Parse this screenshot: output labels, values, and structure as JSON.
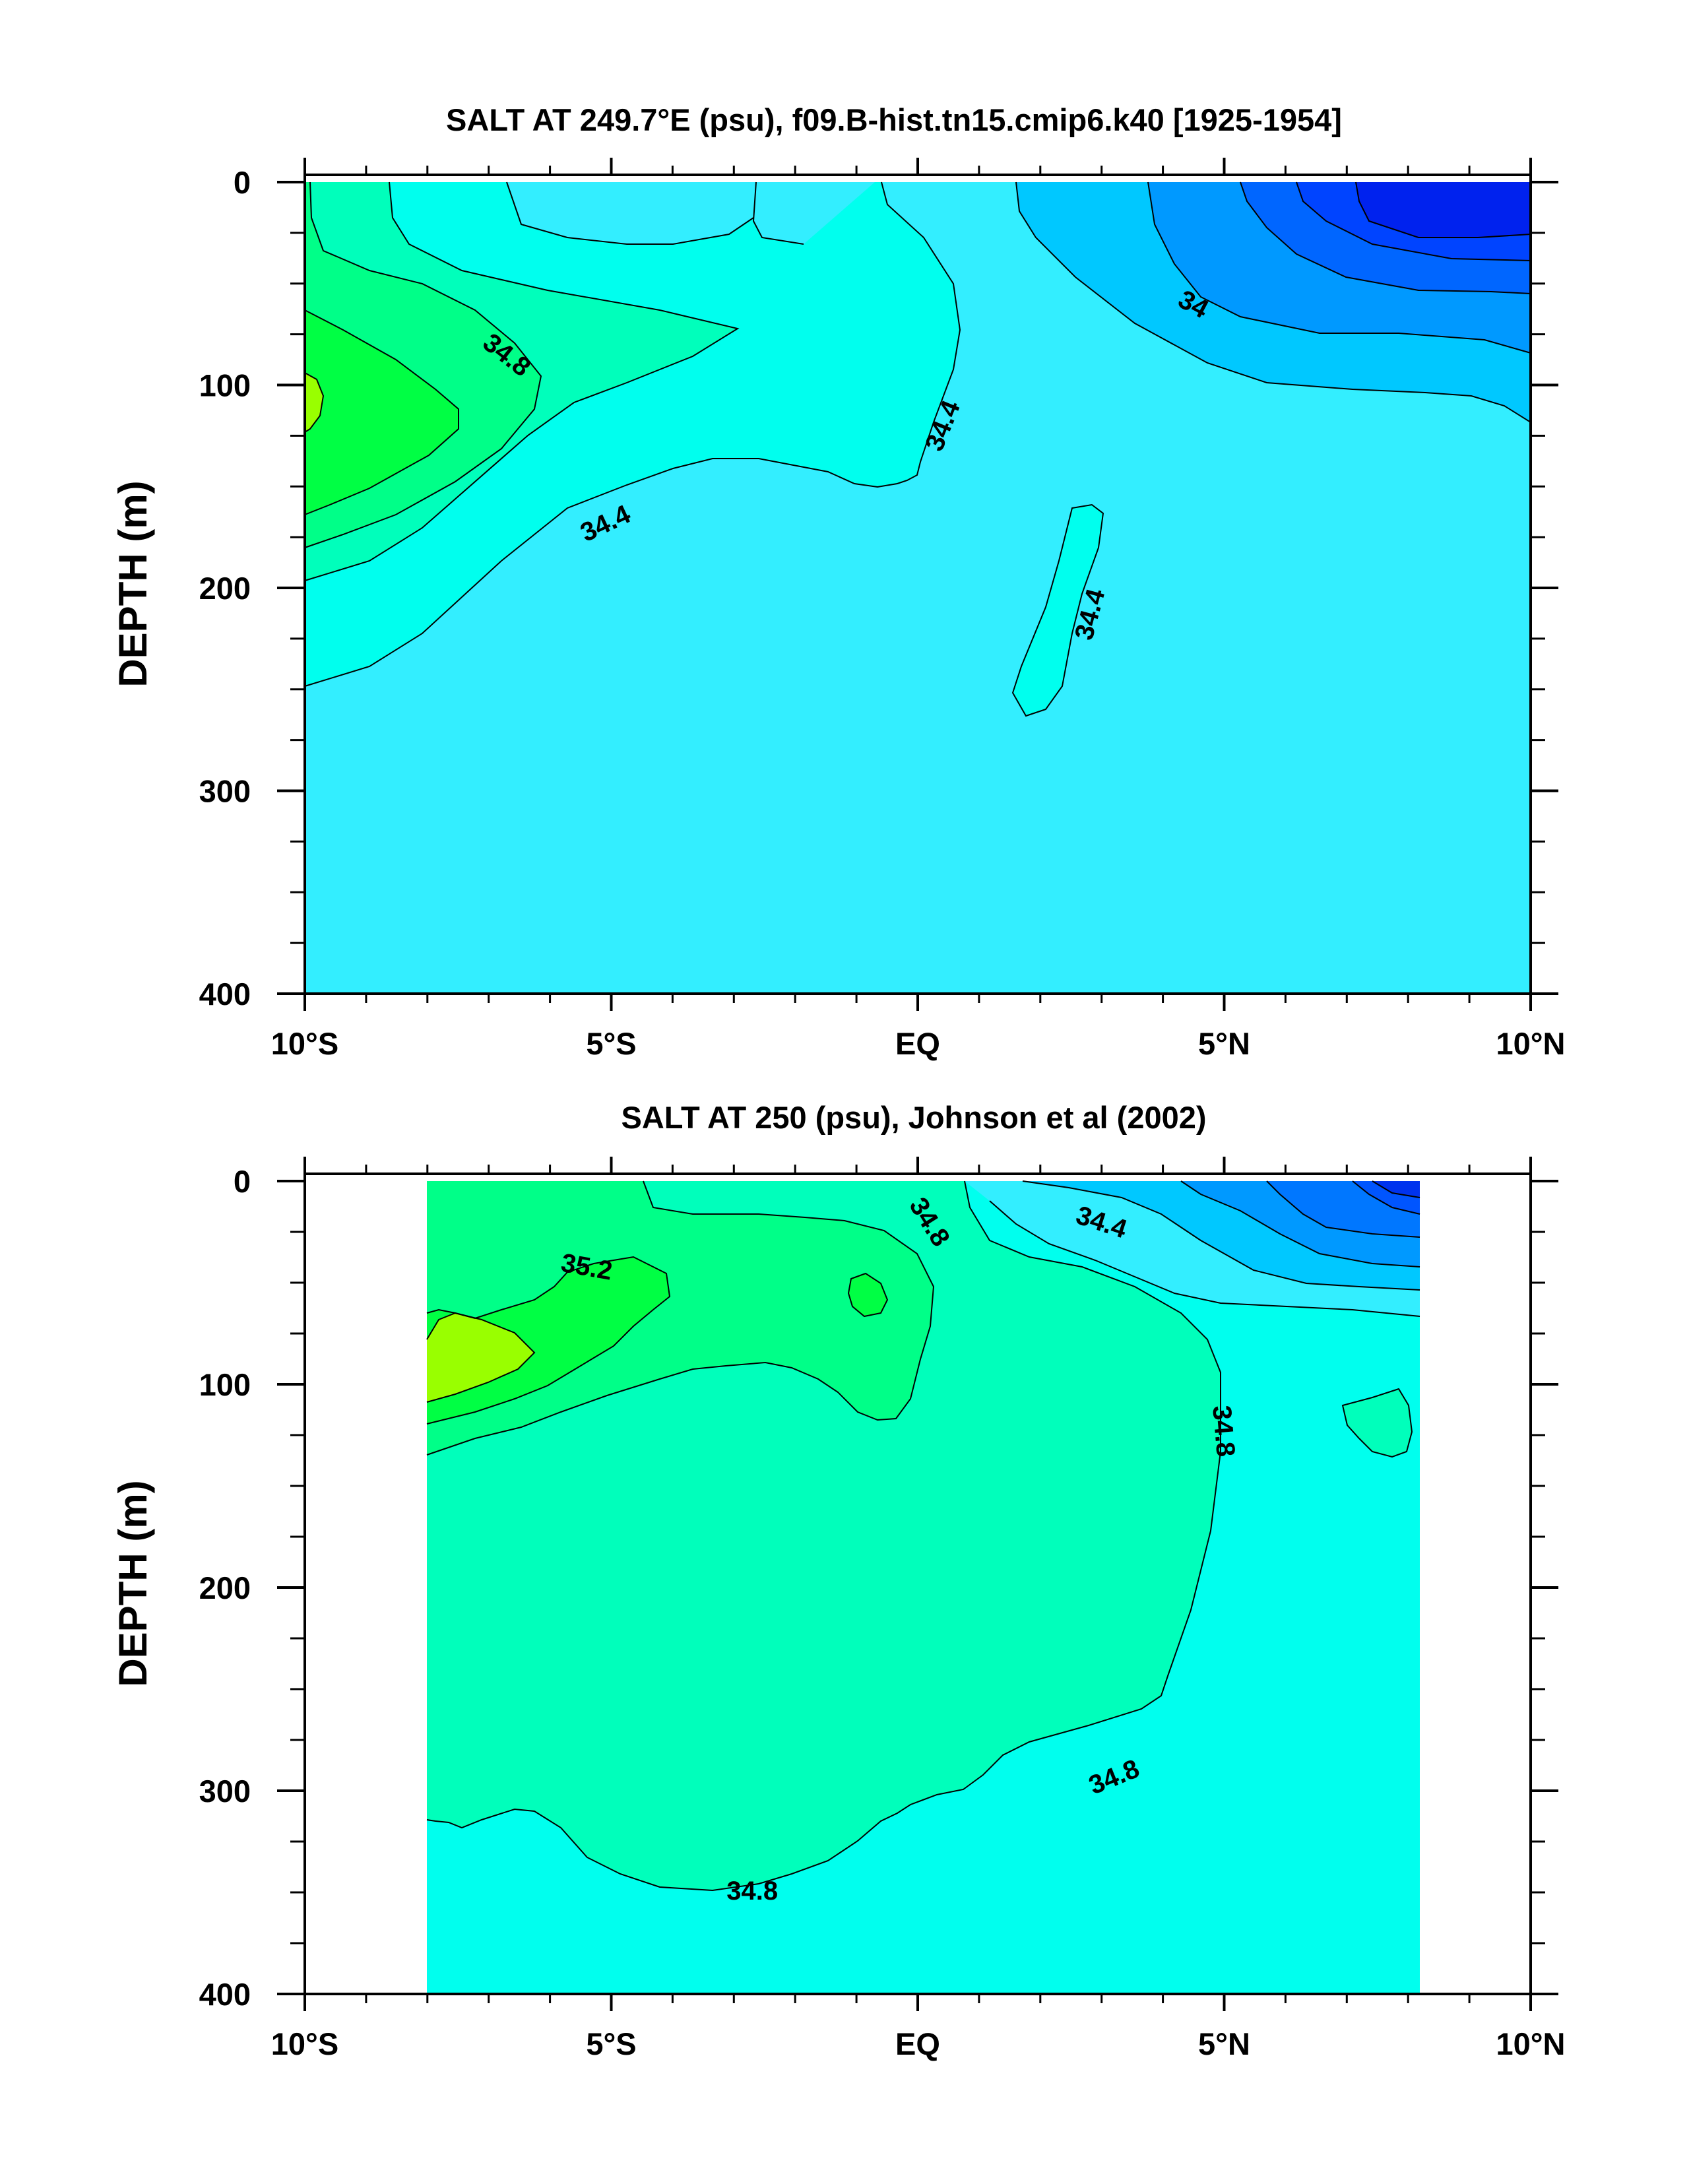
{
  "chart_data": [
    {
      "type": "contour",
      "title": "SALT AT 249.7°E (psu), f09.B-hist.tn15.cmip6.k40 [1925-1954]",
      "xlabel": "",
      "ylabel": "DEPTH (m)",
      "xlim": [
        -10,
        10
      ],
      "ylim": [
        400,
        0
      ],
      "x_ticks": [
        -10,
        -5,
        0,
        5,
        10
      ],
      "x_tick_labels": [
        "10°S",
        "5°S",
        "EQ",
        "5°N",
        "10°N"
      ],
      "y_ticks": [
        0,
        100,
        200,
        300,
        400
      ],
      "y_tick_labels": [
        "0",
        "100",
        "200",
        "300",
        "400"
      ],
      "data_extent": {
        "lat": [
          -10,
          10
        ],
        "depth": [
          5,
          400
        ]
      },
      "contour_labels": [
        {
          "text": "34.8",
          "lat": -6.7,
          "depth": 85,
          "rot": 38
        },
        {
          "text": "34.4",
          "lat": -5.1,
          "depth": 168,
          "rot": -25
        },
        {
          "text": "34.4",
          "lat": 0.4,
          "depth": 120,
          "rot": -68
        },
        {
          "text": "34.4",
          "lat": 2.8,
          "depth": 213,
          "rot": -75
        },
        {
          "text": "34",
          "lat": 4.5,
          "depth": 60,
          "rot": 28
        }
      ]
    },
    {
      "type": "contour",
      "title": "SALT AT 250 (psu), Johnson et al (2002)",
      "xlabel": "",
      "ylabel": "DEPTH (m)",
      "xlim": [
        -10,
        10
      ],
      "ylim": [
        400,
        0
      ],
      "x_ticks": [
        -10,
        -5,
        0,
        5,
        10
      ],
      "x_tick_labels": [
        "10°S",
        "5°S",
        "EQ",
        "5°N",
        "10°N"
      ],
      "y_ticks": [
        0,
        100,
        200,
        300,
        400
      ],
      "y_tick_labels": [
        "0",
        "100",
        "200",
        "300",
        "400"
      ],
      "data_extent": {
        "lat": [
          -8,
          8.2
        ],
        "depth": [
          5,
          400
        ]
      },
      "contour_labels": [
        {
          "text": "35.2",
          "lat": -5.4,
          "depth": 42,
          "rot": 10
        },
        {
          "text": "34.8",
          "lat": 0.2,
          "depth": 20,
          "rot": 58
        },
        {
          "text": "34.4",
          "lat": 3.0,
          "depth": 20,
          "rot": 18
        },
        {
          "text": "34.8",
          "lat": 5.0,
          "depth": 123,
          "rot": 85
        },
        {
          "text": "34.8",
          "lat": 3.2,
          "depth": 293,
          "rot": -22
        },
        {
          "text": "34.8",
          "lat": -2.7,
          "depth": 349,
          "rot": 0
        }
      ]
    }
  ],
  "colors": {
    "c33_6": "#0022ee",
    "c33_8": "#0066ff",
    "c34_0": "#0099ff",
    "c34_2": "#00c8ff",
    "c34_4": "#33eeff",
    "c34_6": "#00ffee",
    "c34_8": "#00ffbb",
    "c35_0": "#00ff88",
    "c35_2": "#00ff44",
    "c35_4": "#99ff00"
  }
}
